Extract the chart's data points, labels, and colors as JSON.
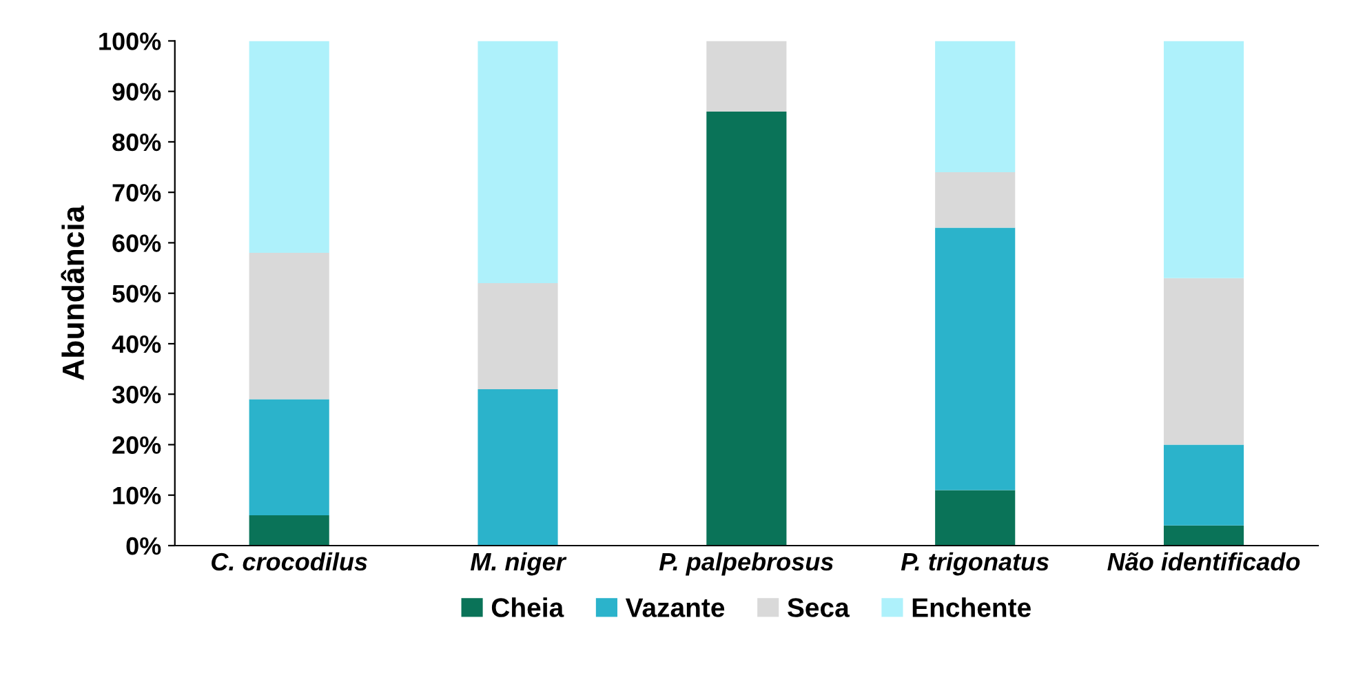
{
  "chart_data": {
    "type": "bar",
    "stacked": true,
    "ylabel": "Abundância",
    "categories": [
      "C. crocodilus",
      "M. niger",
      "P. palpebrosus",
      "P. trigonatus",
      "Não identificado"
    ],
    "series": [
      {
        "name": "Cheia",
        "color": "#0a7358",
        "values": [
          6,
          0,
          86,
          11,
          4
        ]
      },
      {
        "name": "Vazante",
        "color": "#2bb3cb",
        "values": [
          23,
          31,
          0,
          52,
          16
        ]
      },
      {
        "name": "Seca",
        "color": "#d9d9d9",
        "values": [
          29,
          21,
          14,
          11,
          33
        ]
      },
      {
        "name": "Enchente",
        "color": "#aef1fb",
        "values": [
          42,
          48,
          0,
          26,
          47
        ]
      }
    ],
    "ylim": [
      0,
      100
    ],
    "yticks": [
      {
        "value": 0,
        "label": "0%"
      },
      {
        "value": 10,
        "label": "10%"
      },
      {
        "value": 20,
        "label": "20%"
      },
      {
        "value": 30,
        "label": "30%"
      },
      {
        "value": 40,
        "label": "40%"
      },
      {
        "value": 50,
        "label": "50%"
      },
      {
        "value": 60,
        "label": "60%"
      },
      {
        "value": 70,
        "label": "70%"
      },
      {
        "value": 80,
        "label": "80%"
      },
      {
        "value": 90,
        "label": "90%"
      },
      {
        "value": 100,
        "label": "100%"
      }
    ],
    "grid": false,
    "legend": "bottom"
  }
}
